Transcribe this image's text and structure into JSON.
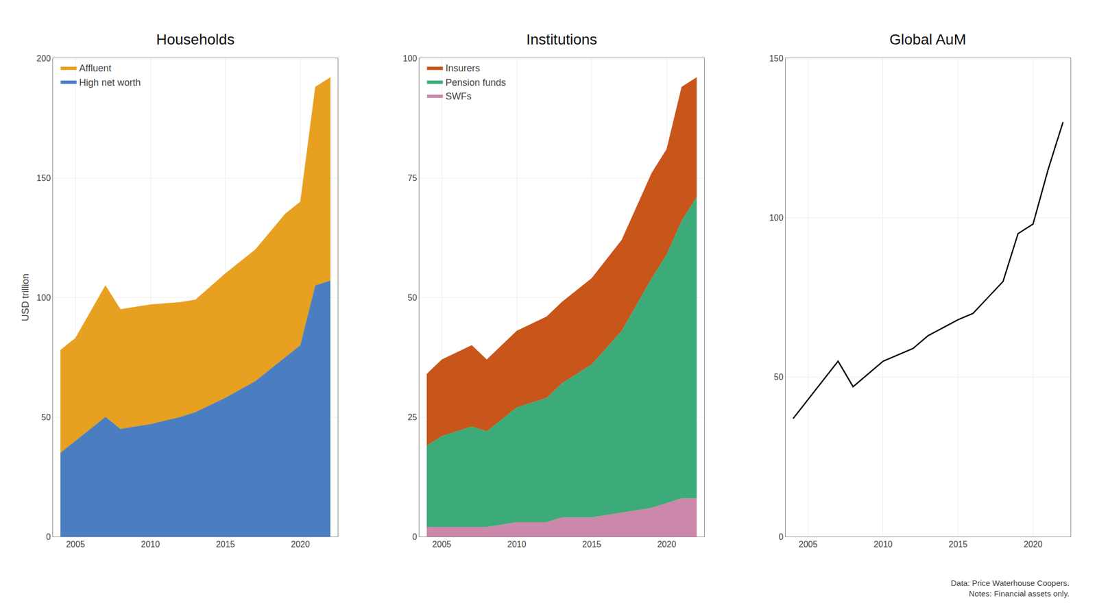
{
  "chart_data": [
    {
      "type": "area",
      "stacked": true,
      "title": "Households",
      "ylabel": "USD trillion",
      "x": [
        2004,
        2005,
        2007,
        2008,
        2010,
        2012,
        2013,
        2015,
        2017,
        2019,
        2020,
        2021,
        2022
      ],
      "series": [
        {
          "name": "High net worth",
          "color": "#4A7EC0",
          "values": [
            35,
            40,
            50,
            45,
            47,
            50,
            52,
            58,
            65,
            75,
            80,
            105,
            107
          ]
        },
        {
          "name": "Affluent",
          "color": "#E8A020",
          "values": [
            43,
            43,
            55,
            50,
            50,
            48,
            47,
            52,
            55,
            60,
            60,
            83,
            85
          ]
        }
      ],
      "xlim": [
        2003.5,
        2022.5
      ],
      "xticks": [
        2005,
        2010,
        2015,
        2020
      ],
      "ylim": [
        0,
        200
      ],
      "yticks": [
        0,
        50,
        100,
        150,
        200
      ],
      "grid": true,
      "legend": "upper left"
    },
    {
      "type": "area",
      "stacked": true,
      "title": "Institutions",
      "x": [
        2004,
        2005,
        2007,
        2008,
        2010,
        2012,
        2013,
        2015,
        2017,
        2019,
        2020,
        2021,
        2022
      ],
      "series": [
        {
          "name": "SWFs",
          "color": "#CC88AA",
          "values": [
            2,
            2,
            2,
            2,
            3,
            3,
            4,
            4,
            5,
            6,
            7,
            8,
            8
          ]
        },
        {
          "name": "Pension funds",
          "color": "#3DAA7A",
          "values": [
            17,
            19,
            21,
            20,
            24,
            26,
            28,
            32,
            38,
            48,
            52,
            58,
            63
          ]
        },
        {
          "name": "Insurers",
          "color": "#C8551A",
          "values": [
            15,
            16,
            17,
            15,
            16,
            17,
            17,
            18,
            19,
            22,
            22,
            28,
            25
          ]
        }
      ],
      "xlim": [
        2003.5,
        2022.5
      ],
      "xticks": [
        2005,
        2010,
        2015,
        2020
      ],
      "ylim": [
        0,
        100
      ],
      "yticks": [
        0,
        25,
        50,
        75,
        100
      ],
      "grid": true,
      "legend": "upper left"
    },
    {
      "type": "line",
      "title": "Global AuM",
      "x": [
        2004,
        2005,
        2007,
        2008,
        2010,
        2012,
        2013,
        2015,
        2016,
        2017,
        2018,
        2019,
        2020,
        2021,
        2022
      ],
      "values": [
        37,
        43,
        55,
        47,
        55,
        59,
        63,
        68,
        70,
        75,
        80,
        95,
        98,
        115,
        130
      ],
      "color": "#000000",
      "xlim": [
        2003.5,
        2022.5
      ],
      "xticks": [
        2005,
        2010,
        2015,
        2020
      ],
      "ylim": [
        0,
        150
      ],
      "yticks": [
        0,
        50,
        100,
        150
      ],
      "grid": true,
      "annotations": [
        "Data: Price Waterhouse Coopers.\nNotes: Financial assets only."
      ]
    }
  ]
}
